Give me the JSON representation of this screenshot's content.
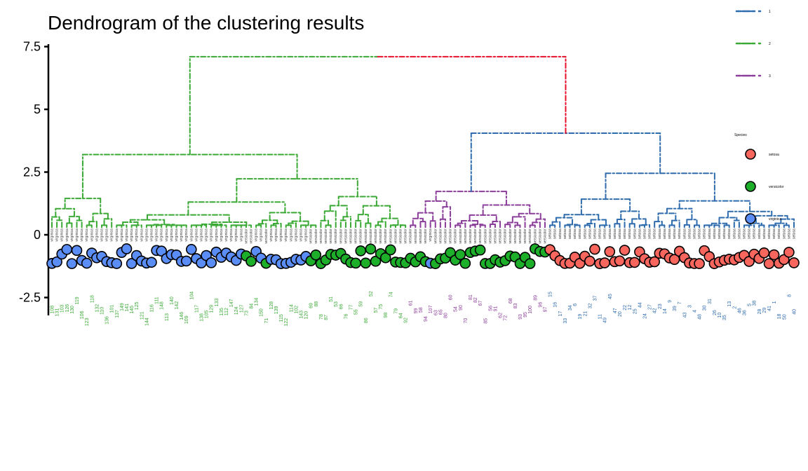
{
  "chart_data": {
    "type": "dendrogram",
    "title": "Dendrogram of the clustering results",
    "xlabel": "",
    "ylabel": "",
    "ylim": [
      -2.9,
      7.5
    ],
    "yticks": [
      -2.5,
      0,
      2.5,
      5,
      7.5
    ],
    "ytick_labels": [
      "-2.5",
      "0",
      "2.5",
      "5",
      "7.5"
    ],
    "grid": false,
    "root_height": 7.1,
    "merge_heights": {
      "green": 3.2,
      "green_left": 1.45,
      "green_right": 2.23,
      "purple_blue": 4.05,
      "purple": 1.73,
      "blue": 2.45,
      "blue_left": 1.42,
      "blue_right": 1.35
    },
    "clusters": [
      {
        "name": "2",
        "color": "#3AA935",
        "leaves": [
          108,
          131,
          103,
          126,
          130,
          119,
          106,
          123,
          118,
          132,
          110,
          136,
          101,
          137,
          149,
          141,
          145,
          125,
          121,
          144,
          116,
          111,
          148,
          113,
          140,
          142,
          146,
          109,
          104,
          117,
          138,
          105,
          129,
          133,
          135,
          112,
          147,
          124,
          127,
          73,
          84,
          134,
          150,
          71,
          128,
          139,
          115,
          122,
          114,
          102,
          143,
          120,
          69,
          88,
          78,
          87,
          51,
          53,
          66,
          76,
          77,
          55,
          59,
          86,
          52,
          57,
          75,
          98,
          74,
          79,
          64,
          92
        ]
      },
      {
        "name": "3",
        "color": "#8B3D9A",
        "leaves": [
          61,
          99,
          58,
          94,
          107,
          63,
          65,
          80,
          60,
          54,
          90,
          70,
          81,
          82,
          67,
          85,
          56,
          91,
          62,
          72,
          68,
          83,
          93,
          95,
          100,
          89,
          96,
          97
        ]
      },
      {
        "name": "1",
        "color": "#2F6CAE",
        "leaves": [
          15,
          16,
          17,
          33,
          34,
          6,
          19,
          21,
          32,
          37,
          11,
          49,
          45,
          47,
          20,
          22,
          12,
          25,
          44,
          24,
          27,
          42,
          23,
          14,
          9,
          39,
          7,
          43,
          3,
          4,
          48,
          30,
          31,
          26,
          10,
          35,
          13,
          2,
          46,
          36,
          5,
          38,
          28,
          29,
          41,
          1,
          18,
          50,
          8,
          40
        ]
      }
    ],
    "root_join_color": "#E8102A",
    "linetype_legend": [
      {
        "label": "1",
        "color": "#2F6CAE"
      },
      {
        "label": "2",
        "color": "#3AA935"
      },
      {
        "label": "3",
        "color": "#8B3D9A"
      }
    ],
    "species_legend": {
      "title": "Species",
      "items": [
        {
          "label": "setosa",
          "color": "#F8665E",
          "range": [
            1,
            50
          ]
        },
        {
          "label": "versicolor",
          "color": "#1DAF2A",
          "range": [
            51,
            100
          ]
        },
        {
          "label": "virginica",
          "color": "#5B8DF6",
          "range": [
            101,
            150
          ]
        }
      ]
    }
  }
}
